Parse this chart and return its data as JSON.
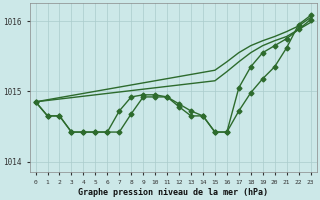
{
  "xlabel": "Graphe pression niveau de la mer (hPa)",
  "x_values": [
    0,
    1,
    2,
    3,
    4,
    5,
    6,
    7,
    8,
    9,
    10,
    11,
    12,
    13,
    14,
    15,
    16,
    17,
    18,
    19,
    20,
    21,
    22,
    23
  ],
  "line1": [
    1014.85,
    1014.65,
    1014.65,
    1014.42,
    1014.42,
    1014.42,
    1014.42,
    1014.42,
    1014.68,
    1014.92,
    1014.92,
    1014.92,
    1014.78,
    1014.65,
    1014.65,
    1014.42,
    1014.42,
    1014.72,
    1014.98,
    1015.18,
    1015.35,
    1015.62,
    1015.95,
    1016.08
  ],
  "line2": [
    1014.85,
    1014.65,
    1014.65,
    1014.42,
    1014.42,
    1014.42,
    1014.42,
    1014.72,
    1014.92,
    1014.95,
    1014.95,
    1014.92,
    1014.82,
    1014.72,
    1014.65,
    1014.42,
    1014.42,
    1015.05,
    1015.35,
    1015.55,
    1015.65,
    1015.75,
    1015.88,
    1016.02
  ],
  "line3_trend": [
    1014.85,
    1014.88,
    1014.91,
    1014.94,
    1014.97,
    1015.0,
    1015.03,
    1015.06,
    1015.09,
    1015.12,
    1015.15,
    1015.18,
    1015.21,
    1015.24,
    1015.27,
    1015.3,
    1015.42,
    1015.55,
    1015.65,
    1015.72,
    1015.78,
    1015.85,
    1015.93,
    1016.05
  ],
  "line4_trend": [
    1014.85,
    1014.87,
    1014.89,
    1014.91,
    1014.93,
    1014.95,
    1014.97,
    1014.99,
    1015.01,
    1015.03,
    1015.05,
    1015.07,
    1015.09,
    1015.11,
    1015.13,
    1015.15,
    1015.28,
    1015.42,
    1015.55,
    1015.65,
    1015.72,
    1015.78,
    1015.88,
    1015.98
  ],
  "bg_color": "#cce8e8",
  "line_color": "#2d6b2d",
  "grid_color": "#aacccc",
  "ylim": [
    1013.85,
    1016.25
  ],
  "yticks": [
    1014,
    1015,
    1016
  ],
  "marker_size": 2.5,
  "line_width": 1.0
}
